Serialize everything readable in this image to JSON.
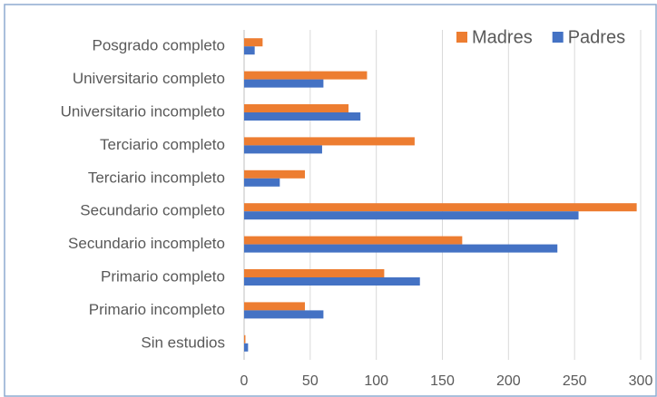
{
  "chart_data": {
    "type": "bar",
    "orientation": "horizontal",
    "categories": [
      "Posgrado completo",
      "Universitario completo",
      "Universitario incompleto",
      "Terciario completo",
      "Terciario incompleto",
      "Secundario completo",
      "Secundario incompleto",
      "Primario completo",
      "Primario incompleto",
      "Sin estudios"
    ],
    "series": [
      {
        "name": "Madres",
        "color": "#ed7d31",
        "values": [
          14,
          93,
          79,
          129,
          46,
          297,
          165,
          106,
          46,
          1
        ]
      },
      {
        "name": "Padres",
        "color": "#4472c4",
        "values": [
          8,
          60,
          88,
          59,
          27,
          253,
          237,
          133,
          60,
          3
        ]
      }
    ],
    "xlim": [
      0,
      300
    ],
    "xticks": [
      0,
      50,
      100,
      150,
      200,
      250,
      300
    ],
    "grid": true,
    "legend": "upper right"
  }
}
